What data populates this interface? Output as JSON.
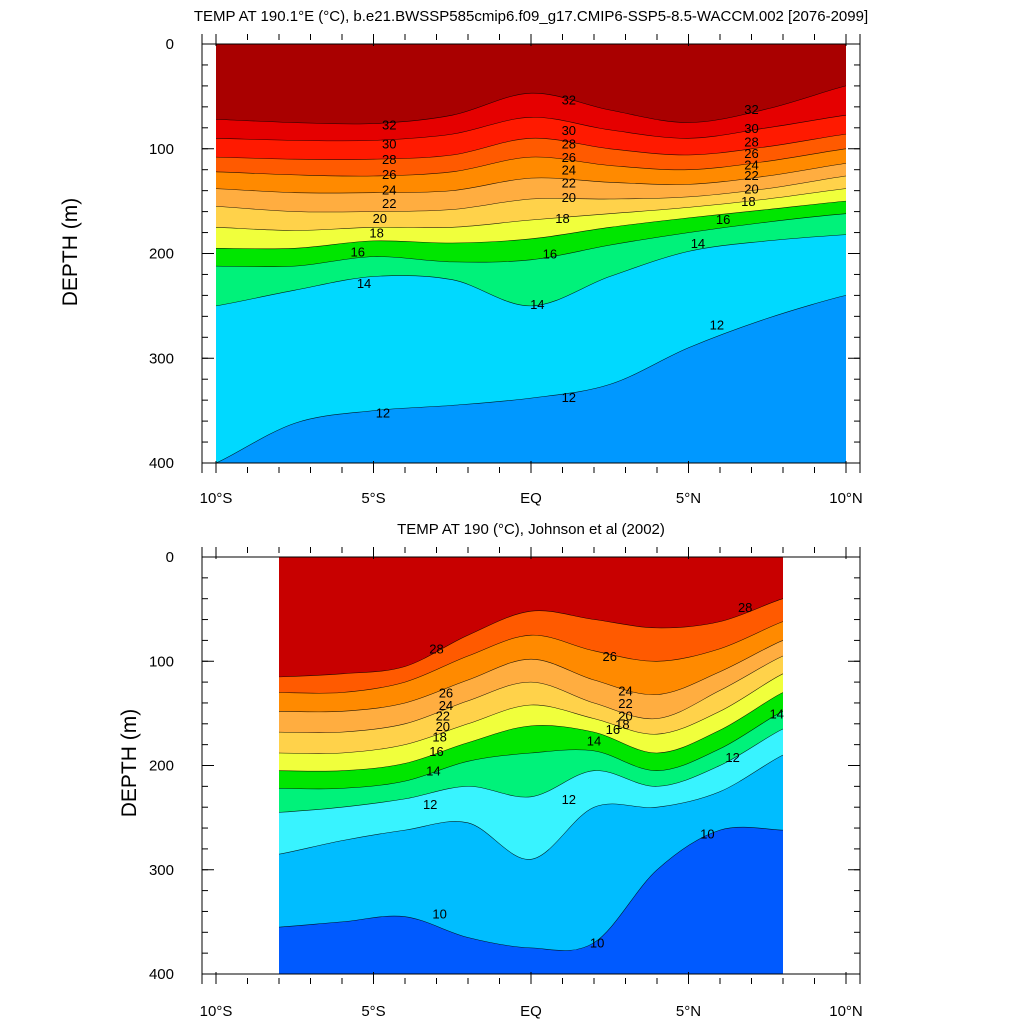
{
  "chart_data": [
    {
      "type": "filled-contour",
      "title": "TEMP AT 190.1°E (°C), b.e21.BWSSP585cmip6.f09_g17.CMIP6-SSP5-8.5-WACCM.002 [2076-2099]",
      "ylabel": "DEPTH (m)",
      "xlabel": "",
      "xlim": [
        -10,
        10
      ],
      "ylim": [
        0,
        400
      ],
      "y_inverted": true,
      "x_ticks": [
        {
          "value": -10,
          "label": "10°S"
        },
        {
          "value": -5,
          "label": "5°S"
        },
        {
          "value": 0,
          "label": "EQ"
        },
        {
          "value": 5,
          "label": "5°N"
        },
        {
          "value": 10,
          "label": "10°N"
        }
      ],
      "y_ticks": [
        {
          "value": 0,
          "label": "0"
        },
        {
          "value": 100,
          "label": "100"
        },
        {
          "value": 200,
          "label": "200"
        },
        {
          "value": 300,
          "label": "300"
        },
        {
          "value": 400,
          "label": "400"
        }
      ],
      "data_xrange": [
        -10,
        10
      ],
      "x_profile": [
        -10,
        -7.5,
        -5,
        -2.5,
        0,
        2.5,
        5,
        7.5,
        10
      ],
      "isotherms": [
        {
          "value": 32,
          "depths": [
            72,
            75,
            76,
            68,
            47,
            63,
            75,
            62,
            40
          ]
        },
        {
          "value": 30,
          "depths": [
            90,
            92,
            92,
            86,
            70,
            82,
            90,
            80,
            68
          ]
        },
        {
          "value": 28,
          "depths": [
            108,
            110,
            110,
            106,
            90,
            100,
            106,
            98,
            86
          ]
        },
        {
          "value": 26,
          "depths": [
            122,
            125,
            126,
            122,
            108,
            116,
            120,
            112,
            100
          ]
        },
        {
          "value": 24,
          "depths": [
            138,
            142,
            142,
            140,
            128,
            132,
            134,
            126,
            114
          ]
        },
        {
          "value": 22,
          "depths": [
            155,
            160,
            160,
            158,
            148,
            148,
            146,
            138,
            126
          ]
        },
        {
          "value": 20,
          "depths": [
            175,
            178,
            175,
            175,
            168,
            162,
            156,
            148,
            138
          ]
        },
        {
          "value": 18,
          "depths": [
            195,
            195,
            188,
            190,
            186,
            175,
            166,
            158,
            150
          ]
        },
        {
          "value": 16,
          "depths": [
            212,
            212,
            203,
            208,
            206,
            192,
            180,
            170,
            162
          ]
        },
        {
          "value": 14,
          "depths": [
            250,
            235,
            222,
            225,
            250,
            222,
            198,
            188,
            182
          ]
        },
        {
          "value": 12,
          "depths": [
            400,
            362,
            350,
            345,
            338,
            325,
            290,
            262,
            240
          ]
        }
      ],
      "contour_labels": [
        {
          "text": "32",
          "x": -4.5,
          "depth": 77
        },
        {
          "text": "32",
          "x": 1.2,
          "depth": 53
        },
        {
          "text": "32",
          "x": 7.0,
          "depth": 62
        },
        {
          "text": "30",
          "x": -4.5,
          "depth": 95
        },
        {
          "text": "30",
          "x": 1.2,
          "depth": 82
        },
        {
          "text": "30",
          "x": 7.0,
          "depth": 80
        },
        {
          "text": "28",
          "x": -4.5,
          "depth": 110
        },
        {
          "text": "28",
          "x": 1.2,
          "depth": 95
        },
        {
          "text": "28",
          "x": 7.0,
          "depth": 93
        },
        {
          "text": "26",
          "x": -4.5,
          "depth": 124
        },
        {
          "text": "26",
          "x": 1.2,
          "depth": 108
        },
        {
          "text": "26",
          "x": 7.0,
          "depth": 104
        },
        {
          "text": "24",
          "x": -4.5,
          "depth": 139
        },
        {
          "text": "24",
          "x": 1.2,
          "depth": 120
        },
        {
          "text": "24",
          "x": 7.0,
          "depth": 115
        },
        {
          "text": "22",
          "x": -4.5,
          "depth": 152
        },
        {
          "text": "22",
          "x": 1.2,
          "depth": 132
        },
        {
          "text": "22",
          "x": 7.0,
          "depth": 125
        },
        {
          "text": "20",
          "x": -4.8,
          "depth": 166
        },
        {
          "text": "20",
          "x": 1.2,
          "depth": 146
        },
        {
          "text": "20",
          "x": 7.0,
          "depth": 138
        },
        {
          "text": "18",
          "x": -4.9,
          "depth": 180
        },
        {
          "text": "18",
          "x": 1.0,
          "depth": 166
        },
        {
          "text": "18",
          "x": 6.9,
          "depth": 150
        },
        {
          "text": "16",
          "x": -5.5,
          "depth": 198
        },
        {
          "text": "16",
          "x": 0.6,
          "depth": 200
        },
        {
          "text": "16",
          "x": 6.1,
          "depth": 167
        },
        {
          "text": "14",
          "x": -5.3,
          "depth": 228
        },
        {
          "text": "14",
          "x": 0.2,
          "depth": 248
        },
        {
          "text": "14",
          "x": 5.3,
          "depth": 190
        },
        {
          "text": "12",
          "x": 5.9,
          "depth": 268
        },
        {
          "text": "12",
          "x": -4.7,
          "depth": 352
        },
        {
          "text": "12",
          "x": 1.2,
          "depth": 337
        }
      ]
    },
    {
      "type": "filled-contour",
      "title": "TEMP AT 190 (°C), Johnson et al (2002)",
      "ylabel": "DEPTH (m)",
      "xlabel": "",
      "xlim": [
        -10,
        10
      ],
      "ylim": [
        0,
        400
      ],
      "y_inverted": true,
      "x_ticks": [
        {
          "value": -10,
          "label": "10°S"
        },
        {
          "value": -5,
          "label": "5°S"
        },
        {
          "value": 0,
          "label": "EQ"
        },
        {
          "value": 5,
          "label": "5°N"
        },
        {
          "value": 10,
          "label": "10°N"
        }
      ],
      "y_ticks": [
        {
          "value": 0,
          "label": "0"
        },
        {
          "value": 100,
          "label": "100"
        },
        {
          "value": 200,
          "label": "200"
        },
        {
          "value": 300,
          "label": "300"
        },
        {
          "value": 400,
          "label": "400"
        }
      ],
      "data_xrange": [
        -8,
        8
      ],
      "x_profile": [
        -8,
        -6,
        -4,
        -2,
        0,
        2,
        4,
        6,
        8
      ],
      "isotherms": [
        {
          "value": 28,
          "depths": [
            115,
            112,
            105,
            75,
            52,
            60,
            68,
            62,
            40
          ]
        },
        {
          "value": 26,
          "depths": [
            130,
            130,
            120,
            95,
            75,
            90,
            100,
            88,
            62
          ]
        },
        {
          "value": 24,
          "depths": [
            148,
            148,
            140,
            118,
            98,
            118,
            132,
            110,
            80
          ]
        },
        {
          "value": 22,
          "depths": [
            168,
            168,
            160,
            138,
            120,
            140,
            155,
            128,
            95
          ]
        },
        {
          "value": 20,
          "depths": [
            188,
            188,
            180,
            160,
            142,
            155,
            170,
            148,
            112
          ]
        },
        {
          "value": 18,
          "depths": [
            205,
            205,
            198,
            178,
            162,
            168,
            188,
            166,
            130
          ]
        },
        {
          "value": 16,
          "depths": [
            222,
            222,
            215,
            196,
            188,
            186,
            205,
            184,
            148
          ]
        },
        {
          "value": 14,
          "depths": [
            245,
            240,
            232,
            220,
            230,
            205,
            220,
            200,
            165
          ]
        },
        {
          "value": 12,
          "depths": [
            285,
            272,
            262,
            255,
            290,
            240,
            240,
            225,
            190
          ]
        },
        {
          "value": 10,
          "depths": [
            355,
            350,
            345,
            365,
            375,
            370,
            300,
            262,
            262
          ]
        }
      ],
      "contour_labels": [
        {
          "text": "28",
          "x": 6.8,
          "depth": 48
        },
        {
          "text": "28",
          "x": -3.0,
          "depth": 88
        },
        {
          "text": "26",
          "x": 2.5,
          "depth": 95
        },
        {
          "text": "26",
          "x": -2.7,
          "depth": 130
        },
        {
          "text": "24",
          "x": -2.7,
          "depth": 142
        },
        {
          "text": "24",
          "x": 3.0,
          "depth": 128
        },
        {
          "text": "22",
          "x": -2.8,
          "depth": 152
        },
        {
          "text": "22",
          "x": 3.0,
          "depth": 140
        },
        {
          "text": "20",
          "x": -2.8,
          "depth": 162
        },
        {
          "text": "20",
          "x": 3.0,
          "depth": 152
        },
        {
          "text": "18",
          "x": -2.9,
          "depth": 172
        },
        {
          "text": "18",
          "x": 2.9,
          "depth": 160
        },
        {
          "text": "16",
          "x": -3.0,
          "depth": 186
        },
        {
          "text": "16",
          "x": 2.6,
          "depth": 165
        },
        {
          "text": "14",
          "x": -3.1,
          "depth": 205
        },
        {
          "text": "14",
          "x": 2.0,
          "depth": 176
        },
        {
          "text": "14",
          "x": 7.8,
          "depth": 150
        },
        {
          "text": "12",
          "x": -3.2,
          "depth": 237
        },
        {
          "text": "12",
          "x": 1.2,
          "depth": 232
        },
        {
          "text": "12",
          "x": 6.4,
          "depth": 192
        },
        {
          "text": "10",
          "x": 5.6,
          "depth": 265
        },
        {
          "text": "10",
          "x": -2.9,
          "depth": 342
        },
        {
          "text": "10",
          "x": 2.1,
          "depth": 370
        }
      ]
    }
  ],
  "colors": {
    "above_32": "#a90000",
    "30-32": "#c80000",
    "28-30": "#e50000",
    "26-28": "#ff1a00",
    "24-26": "#ff5a00",
    "22-24": "#ff8a00",
    "20-22": "#ffad40",
    "18-20": "#ffd24a",
    "16-18": "#f0ff3c",
    "14-16": "#a8ff2e",
    "12-14": "#00e600",
    "10-12": "#00f27a",
    "8-10": "#24ffd2",
    "6-8": "#38f3ff",
    "4-6": "#00d9ff",
    "2-4": "#00bdff",
    "0-2": "#0098ff",
    "deep": "#005aff"
  }
}
